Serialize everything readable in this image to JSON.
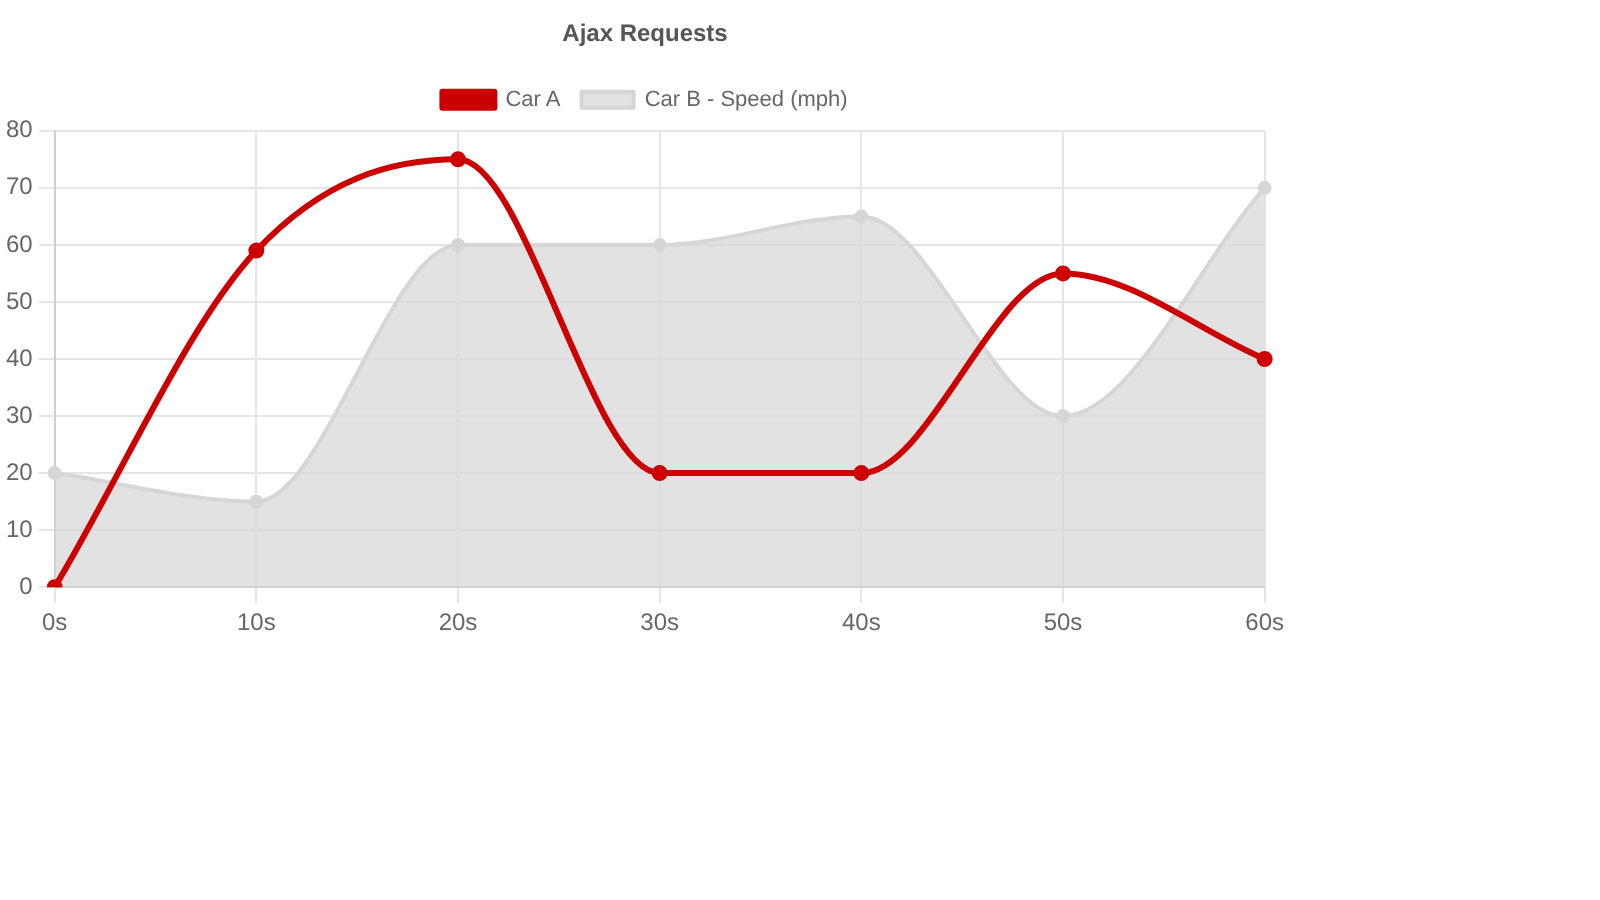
{
  "chart_data": {
    "type": "line",
    "title": "Ajax Requests",
    "categories": [
      "0s",
      "10s",
      "20s",
      "30s",
      "40s",
      "50s",
      "60s"
    ],
    "series": [
      {
        "name": "Car B - Speed (mph)",
        "type": "area",
        "color": "#d6d6d6",
        "values": [
          20,
          15,
          60,
          60,
          65,
          30,
          70
        ]
      },
      {
        "name": "Car A",
        "type": "line",
        "color": "#cc0000",
        "values": [
          0,
          59,
          75,
          20,
          20,
          55,
          40
        ]
      }
    ],
    "ylim": [
      0,
      80
    ],
    "yticks": [
      0,
      10,
      20,
      30,
      40,
      50,
      60,
      70,
      80
    ],
    "grid": true,
    "legend": "top",
    "marker": "circle"
  }
}
